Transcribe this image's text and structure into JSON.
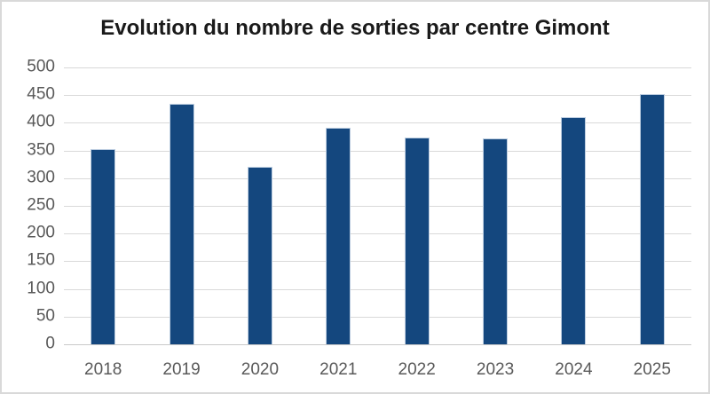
{
  "chart_data": {
    "type": "bar",
    "title": "Evolution du nombre de sorties par centre Gimont",
    "categories": [
      "2018",
      "2019",
      "2020",
      "2021",
      "2022",
      "2023",
      "2024",
      "2025"
    ],
    "values": [
      353,
      435,
      321,
      391,
      374,
      372,
      411,
      452
    ],
    "xlabel": "",
    "ylabel": "",
    "ylim": [
      0,
      500
    ],
    "yticks": [
      0,
      50,
      100,
      150,
      200,
      250,
      300,
      350,
      400,
      450,
      500
    ],
    "grid": "horizontal-gridlines-on",
    "legend": "none",
    "colors": {
      "bar_fill": "#14477e",
      "bar_border": "#bccde0",
      "gridline": "#d9d9d9",
      "baseline": "#c9c9c9",
      "axis_labels": "#595959",
      "title": "#1a1a1a",
      "background": "#ffffff",
      "frame_border": "#d9d9d9"
    }
  }
}
